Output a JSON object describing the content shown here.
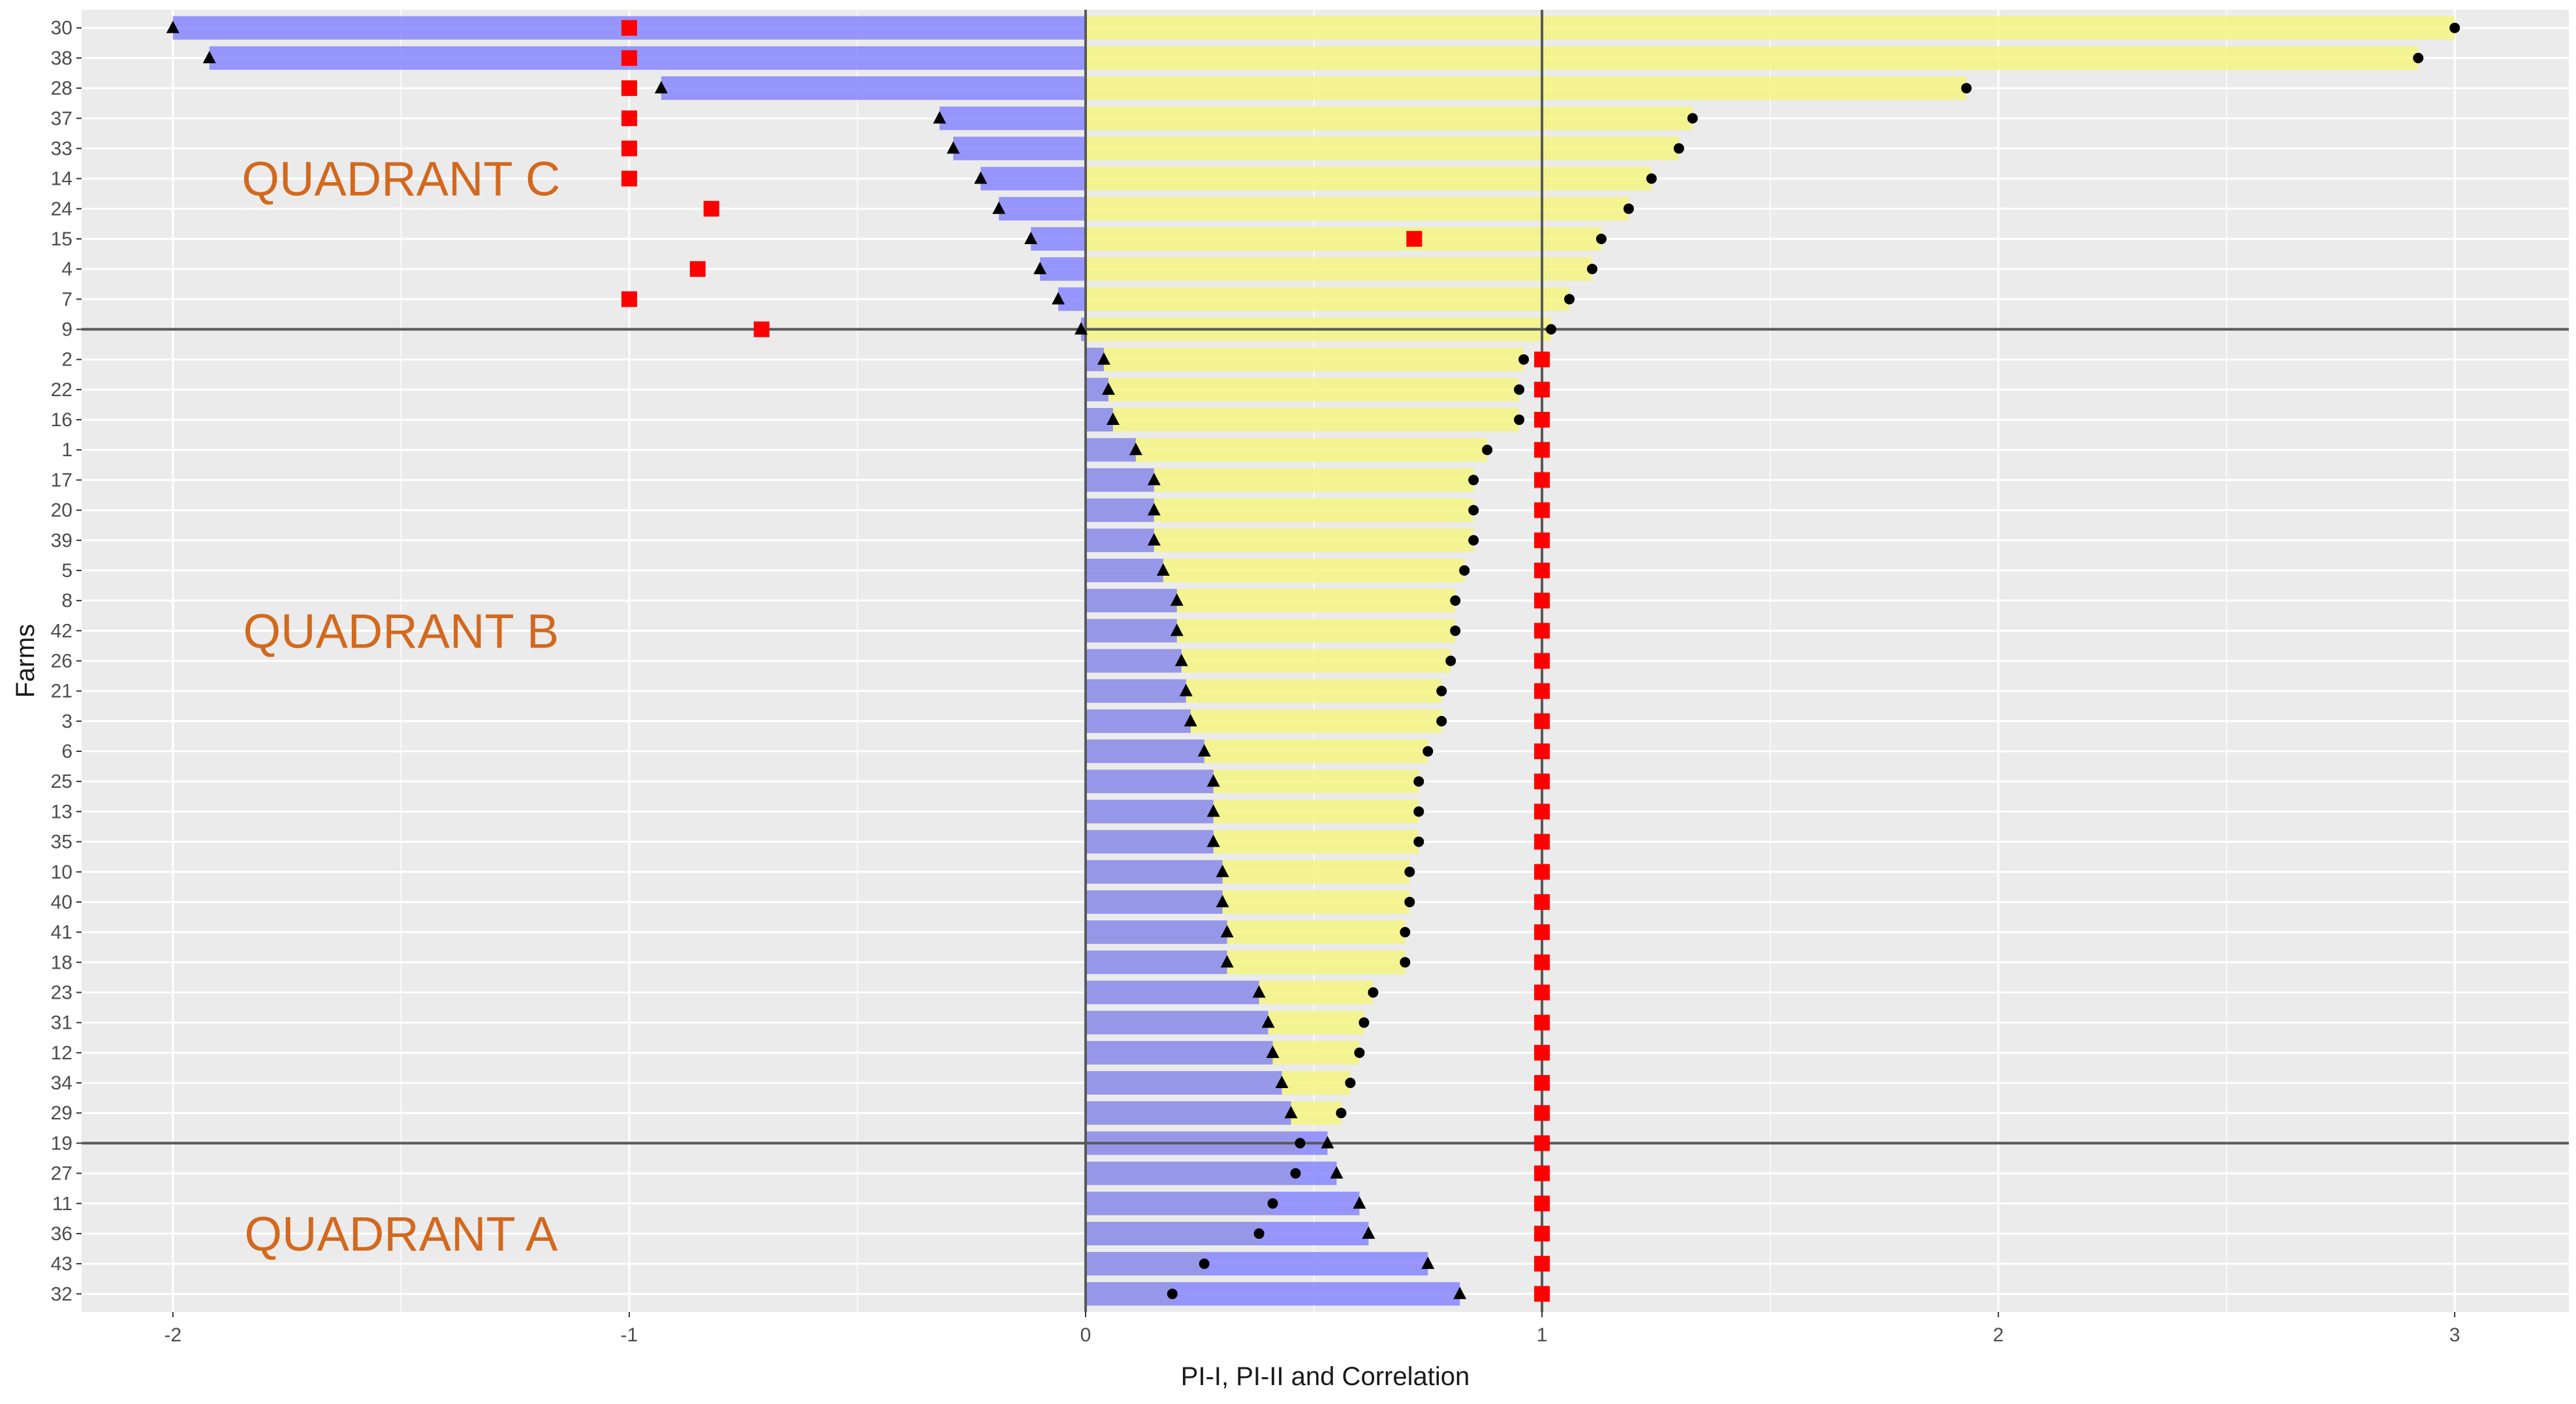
{
  "chart_data": {
    "type": "bar",
    "xlabel": "PI-I, PI-II and Correlation",
    "ylabel": "Farms",
    "xlim": [
      -2.2,
      3.25
    ],
    "x_ticks": [
      -2,
      -1,
      0,
      1,
      2,
      3
    ],
    "grid": true,
    "reference_lines": {
      "vertical": [
        0,
        1
      ],
      "horizontal_after_farms": [
        "9",
        "19"
      ]
    },
    "colors": {
      "pi1_bar": "#8080ff",
      "pi2_bar": "#f5f57a",
      "correlation": "#ff0000",
      "panel": "#ebebeb",
      "quadrant_text": "#d2691e"
    },
    "annotations": [
      {
        "text": "QUADRANT C",
        "x": -1.5,
        "farm": "14"
      },
      {
        "text": "QUADRANT B",
        "x": -1.5,
        "farm": "42"
      },
      {
        "text": "QUADRANT A",
        "x": -1.5,
        "farm": "36"
      }
    ],
    "farms": [
      "30",
      "38",
      "28",
      "37",
      "33",
      "14",
      "24",
      "15",
      "4",
      "7",
      "9",
      "2",
      "22",
      "16",
      "1",
      "17",
      "20",
      "39",
      "5",
      "8",
      "42",
      "26",
      "21",
      "3",
      "6",
      "25",
      "13",
      "35",
      "10",
      "40",
      "41",
      "18",
      "23",
      "31",
      "12",
      "34",
      "29",
      "19",
      "27",
      "11",
      "36",
      "43",
      "32"
    ],
    "series": [
      {
        "name": "PI-I",
        "marker": "triangle",
        "values": [
          -2.0,
          -1.92,
          -0.93,
          -0.32,
          -0.29,
          -0.23,
          -0.19,
          -0.12,
          -0.1,
          -0.06,
          -0.01,
          0.04,
          0.05,
          0.06,
          0.11,
          0.15,
          0.15,
          0.15,
          0.17,
          0.2,
          0.2,
          0.21,
          0.22,
          0.23,
          0.26,
          0.28,
          0.28,
          0.28,
          0.3,
          0.3,
          0.31,
          0.31,
          0.38,
          0.4,
          0.41,
          0.43,
          0.45,
          0.53,
          0.55,
          0.6,
          0.62,
          0.75,
          0.82
        ]
      },
      {
        "name": "PI-II",
        "marker": "circle",
        "values": [
          3.0,
          2.92,
          1.93,
          1.33,
          1.3,
          1.24,
          1.19,
          1.13,
          1.11,
          1.06,
          1.02,
          0.96,
          0.95,
          0.95,
          0.88,
          0.85,
          0.85,
          0.85,
          0.83,
          0.81,
          0.81,
          0.8,
          0.78,
          0.78,
          0.75,
          0.73,
          0.73,
          0.73,
          0.71,
          0.71,
          0.7,
          0.7,
          0.63,
          0.61,
          0.6,
          0.58,
          0.56,
          0.47,
          0.46,
          0.41,
          0.38,
          0.26,
          0.19
        ]
      },
      {
        "name": "Correlation",
        "marker": "square",
        "values": [
          -1,
          -1,
          -1,
          -1,
          -1,
          -1,
          -0.82,
          0.72,
          -0.85,
          -1,
          -0.71,
          1,
          1,
          1,
          1,
          1,
          1,
          1,
          1,
          1,
          1,
          1,
          1,
          1,
          1,
          1,
          1,
          1,
          1,
          1,
          1,
          1,
          1,
          1,
          1,
          1,
          1,
          1,
          1,
          1,
          1,
          1,
          1
        ]
      }
    ]
  }
}
